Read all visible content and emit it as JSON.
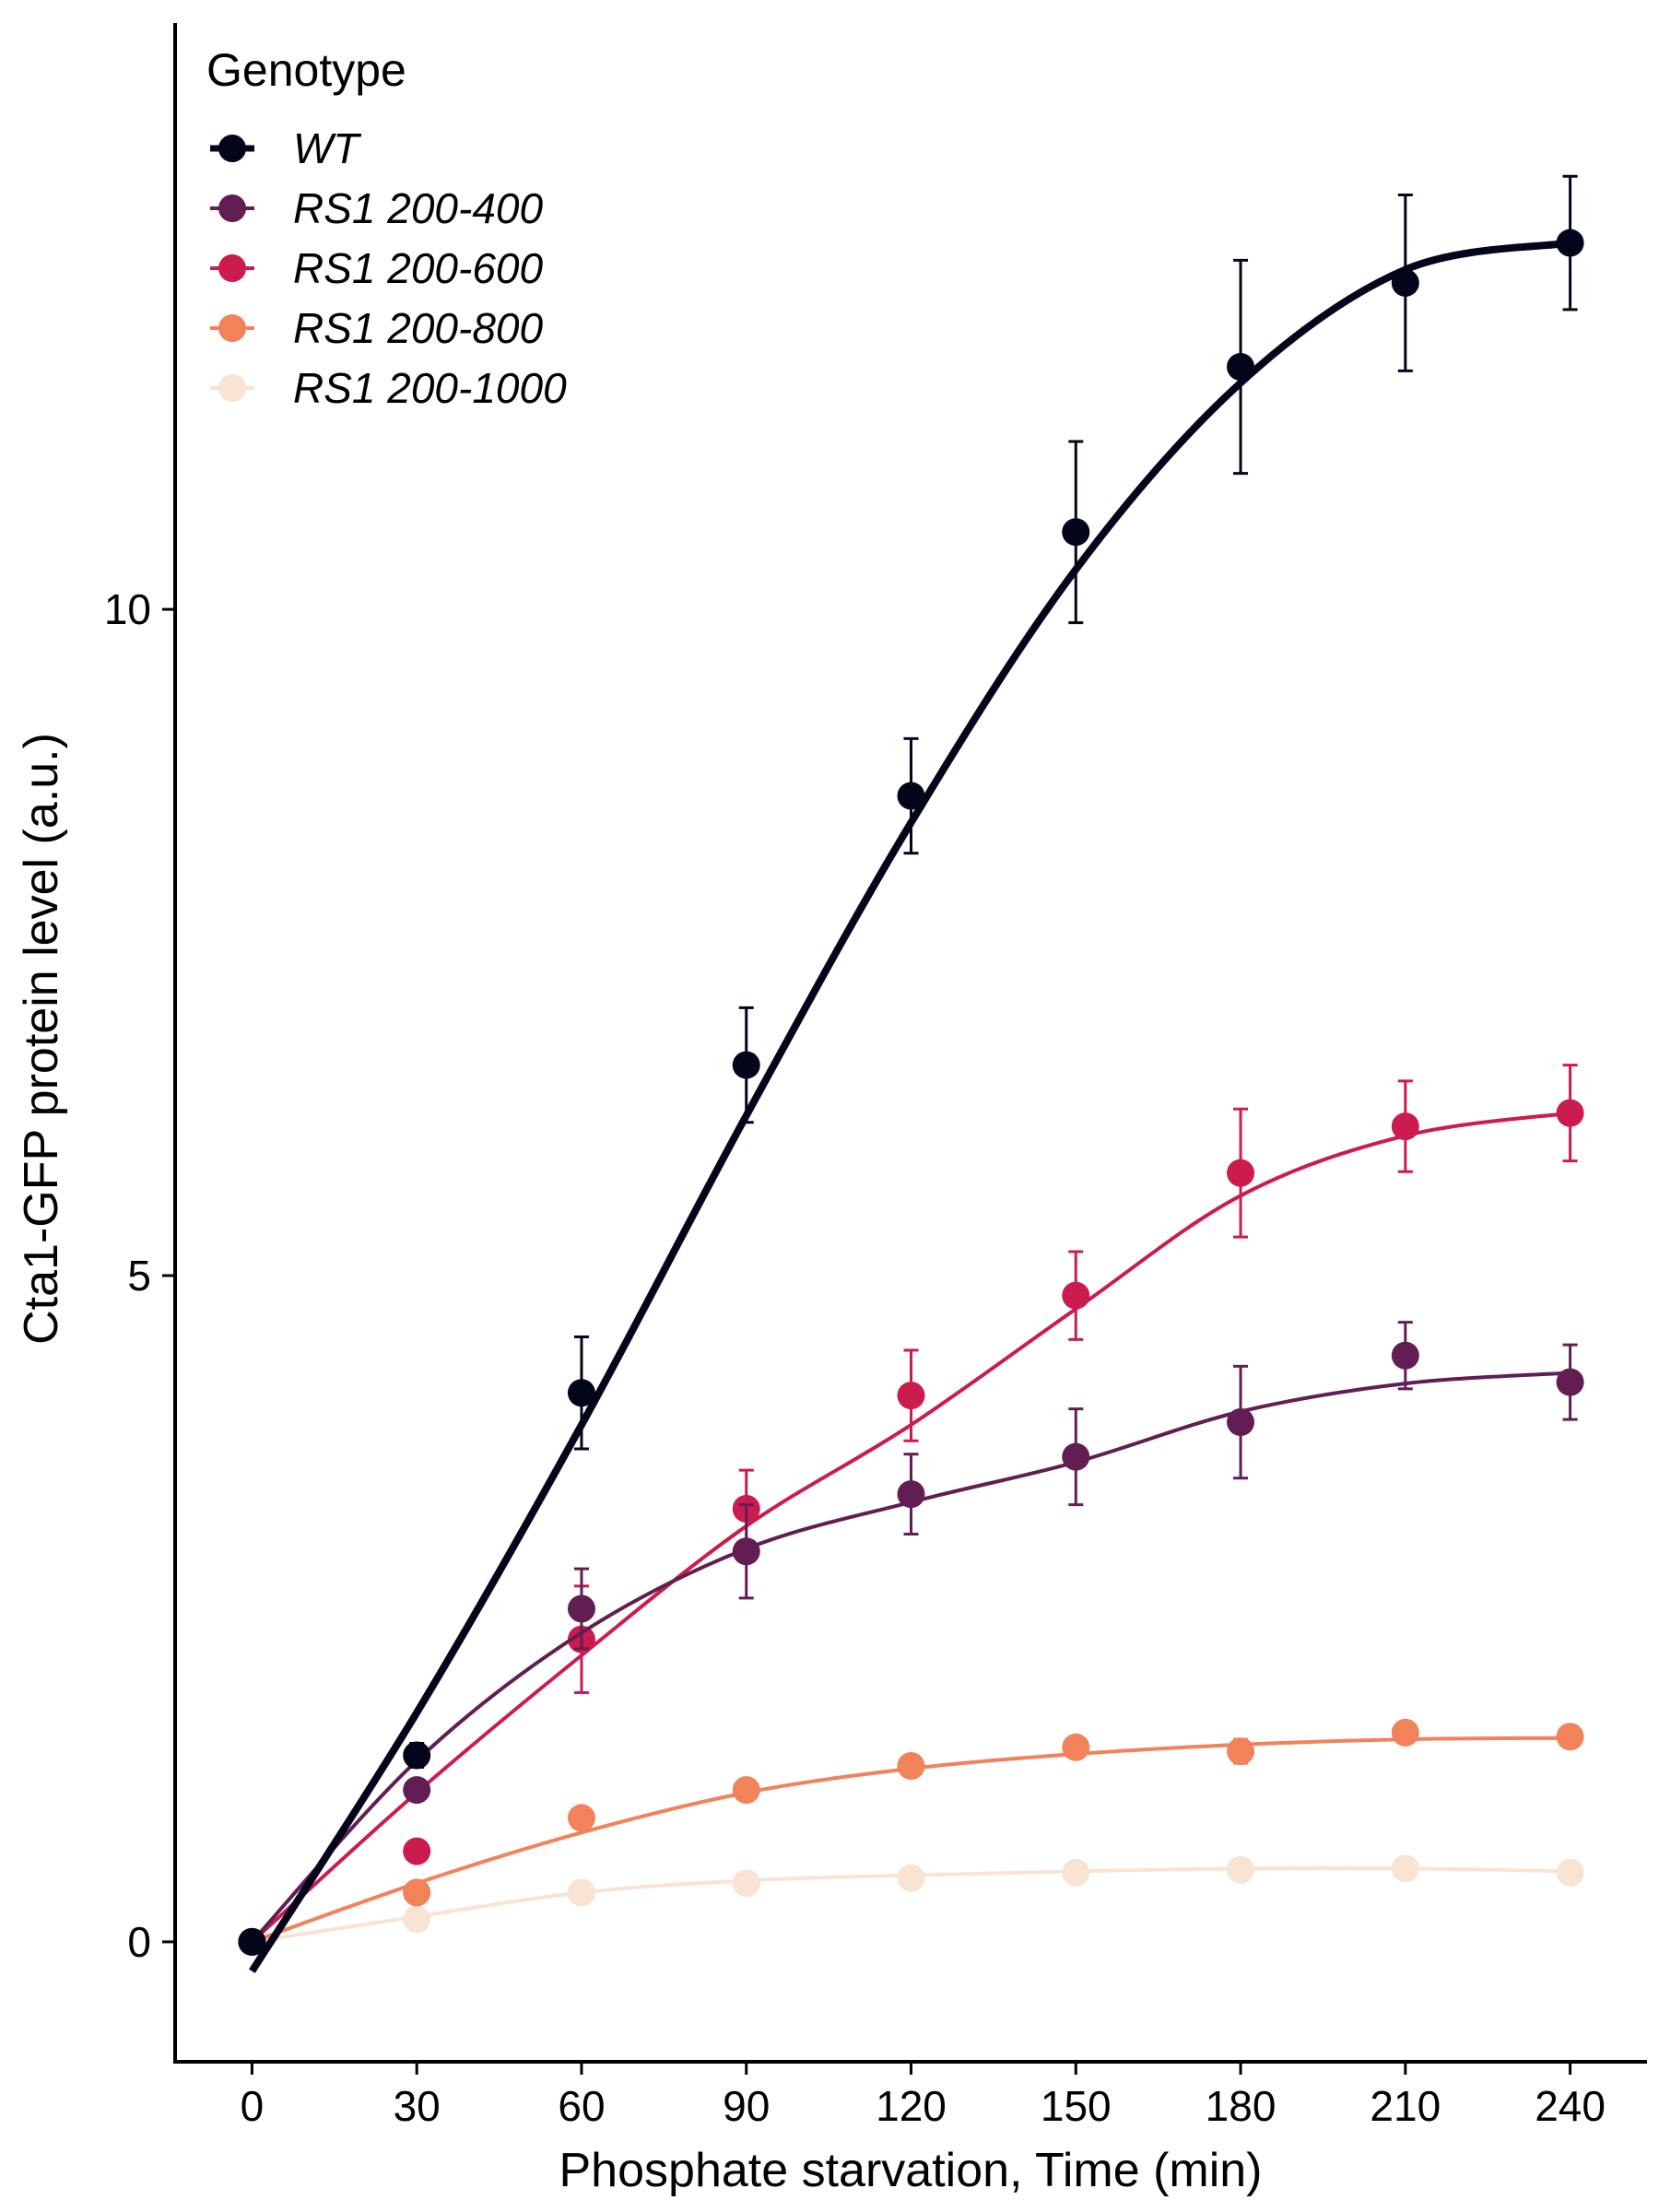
{
  "chart_data": {
    "type": "line",
    "title": "",
    "xlabel": "Phosphate starvation, Time (min)",
    "ylabel": "Cta1-GFP protein level (a.u.)",
    "xlim": [
      -14,
      254
    ],
    "ylim": [
      -0.9,
      14.4
    ],
    "xticks": [
      0,
      30,
      60,
      90,
      120,
      150,
      180,
      210,
      240
    ],
    "yticks": [
      0,
      5,
      10
    ],
    "grid": false,
    "legend": {
      "title": "Genotype",
      "placement": "top-left"
    },
    "x": [
      0,
      30,
      60,
      90,
      120,
      150,
      180,
      210,
      240
    ],
    "series": [
      {
        "name": "WT",
        "color": "#03051a",
        "values": [
          0.0,
          1.4,
          4.12,
          6.58,
          8.6,
          10.58,
          11.82,
          12.45,
          12.75
        ],
        "errors": [
          0.0,
          0.09,
          0.42,
          0.43,
          0.43,
          0.68,
          0.8,
          0.66,
          0.5
        ],
        "fit": [
          -0.22,
          1.72,
          3.88,
          6.2,
          8.4,
          10.3,
          11.7,
          12.55,
          12.75
        ]
      },
      {
        "name": "RS1 200-400",
        "color": "#621e52",
        "values": [
          0.0,
          1.14,
          2.5,
          2.93,
          3.36,
          3.64,
          3.9,
          4.4,
          4.2
        ],
        "errors": [
          0.0,
          0.05,
          0.3,
          0.35,
          0.3,
          0.36,
          0.42,
          0.25,
          0.28
        ],
        "fit": [
          0.0,
          1.36,
          2.32,
          2.95,
          3.3,
          3.6,
          3.98,
          4.19,
          4.27
        ]
      },
      {
        "name": "RS1 200-600",
        "color": "#cb1b4f",
        "values": [
          0.0,
          0.68,
          2.27,
          3.25,
          4.1,
          4.85,
          5.77,
          6.12,
          6.22
        ],
        "errors": [
          0.0,
          0.0,
          0.4,
          0.29,
          0.34,
          0.33,
          0.48,
          0.34,
          0.36
        ],
        "fit": [
          0.0,
          1.12,
          2.15,
          3.12,
          3.88,
          4.75,
          5.6,
          6.05,
          6.22
        ]
      },
      {
        "name": "RS1 200-800",
        "color": "#f1825a",
        "values": [
          0.0,
          0.37,
          0.93,
          1.14,
          1.32,
          1.46,
          1.43,
          1.57,
          1.54
        ],
        "errors": [
          0.0,
          0.04,
          0.04,
          0.04,
          0.03,
          0.03,
          0.09,
          0.03,
          0.04
        ],
        "fit": [
          0.0,
          0.44,
          0.82,
          1.12,
          1.3,
          1.41,
          1.48,
          1.52,
          1.53
        ]
      },
      {
        "name": "RS1 200-1000",
        "color": "#f9e3d3",
        "values": [
          0.0,
          0.17,
          0.37,
          0.44,
          0.48,
          0.52,
          0.54,
          0.55,
          0.52
        ],
        "errors": [
          0.0,
          0.02,
          0.02,
          0.02,
          0.02,
          0.02,
          0.02,
          0.02,
          0.02
        ],
        "fit": [
          0.0,
          0.19,
          0.37,
          0.46,
          0.5,
          0.53,
          0.55,
          0.55,
          0.53
        ]
      }
    ]
  }
}
